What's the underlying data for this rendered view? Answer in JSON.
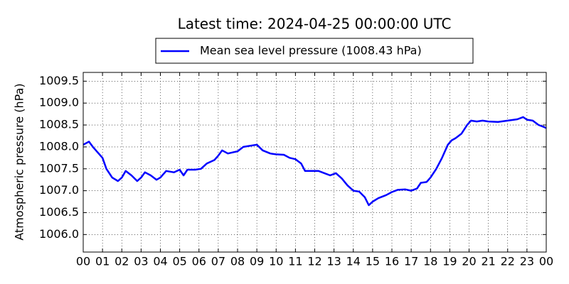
{
  "chart_data": {
    "type": "line",
    "title": "Latest time: 2024-04-25 00:00:00 UTC",
    "ylabel": "Atmospheric pressure (hPa)",
    "xlim": [
      0,
      24
    ],
    "ylim": [
      1005.6,
      1009.7
    ],
    "xticks": [
      {
        "value": 0,
        "label": "00"
      },
      {
        "value": 1,
        "label": "01"
      },
      {
        "value": 2,
        "label": "02"
      },
      {
        "value": 3,
        "label": "03"
      },
      {
        "value": 4,
        "label": "04"
      },
      {
        "value": 5,
        "label": "05"
      },
      {
        "value": 6,
        "label": "06"
      },
      {
        "value": 7,
        "label": "07"
      },
      {
        "value": 8,
        "label": "08"
      },
      {
        "value": 9,
        "label": "09"
      },
      10,
      11,
      12,
      13,
      14,
      15,
      16,
      17,
      18,
      19,
      20,
      21,
      22,
      23,
      {
        "value": 24,
        "label": "00"
      }
    ],
    "yticks": [
      {
        "value": 1006.0,
        "label": "1006.0"
      },
      1006.5,
      {
        "value": 1007.0,
        "label": "1007.0"
      },
      1007.5,
      {
        "value": 1008.0,
        "label": "1008.0"
      },
      1008.5,
      {
        "value": 1009.0,
        "label": "1009.0"
      },
      1009.5
    ],
    "grid": true,
    "legend": "upper center",
    "x": [
      0,
      0.3,
      0.5,
      0.8,
      1.0,
      1.2,
      1.5,
      1.8,
      2.0,
      2.2,
      2.5,
      2.8,
      3.0,
      3.2,
      3.5,
      3.8,
      4.0,
      4.3,
      4.7,
      5.0,
      5.2,
      5.4,
      5.8,
      6.1,
      6.4,
      6.8,
      7.0,
      7.2,
      7.5,
      7.8,
      8.0,
      8.3,
      8.7,
      9.0,
      9.3,
      9.7,
      10.0,
      10.4,
      10.7,
      11.0,
      11.3,
      11.5,
      11.8,
      12.2,
      12.5,
      12.8,
      13.1,
      13.4,
      13.7,
      14.0,
      14.3,
      14.6,
      14.8,
      15.0,
      15.3,
      15.7,
      16.0,
      16.3,
      16.7,
      17.0,
      17.3,
      17.5,
      17.8,
      18.0,
      18.3,
      18.6,
      18.9,
      19.1,
      19.3,
      19.6,
      19.9,
      20.1,
      20.4,
      20.7,
      21.0,
      21.5,
      22.0,
      22.5,
      22.8,
      23.0,
      23.3,
      23.6,
      23.9,
      24.0
    ],
    "series": [
      {
        "name": "Mean sea level pressure (1008.43 hPa)",
        "color": "#0000ff",
        "values": [
          1008.05,
          1008.12,
          1008.0,
          1007.85,
          1007.75,
          1007.5,
          1007.3,
          1007.22,
          1007.3,
          1007.45,
          1007.35,
          1007.22,
          1007.3,
          1007.42,
          1007.35,
          1007.25,
          1007.3,
          1007.45,
          1007.42,
          1007.48,
          1007.35,
          1007.48,
          1007.48,
          1007.5,
          1007.62,
          1007.7,
          1007.8,
          1007.92,
          1007.85,
          1007.88,
          1007.9,
          1008.0,
          1008.03,
          1008.05,
          1007.92,
          1007.85,
          1007.83,
          1007.82,
          1007.75,
          1007.72,
          1007.62,
          1007.45,
          1007.45,
          1007.45,
          1007.4,
          1007.35,
          1007.4,
          1007.28,
          1007.12,
          1007.0,
          1006.98,
          1006.85,
          1006.67,
          1006.75,
          1006.83,
          1006.9,
          1006.97,
          1007.02,
          1007.03,
          1007.0,
          1007.05,
          1007.18,
          1007.2,
          1007.3,
          1007.5,
          1007.75,
          1008.05,
          1008.15,
          1008.2,
          1008.3,
          1008.5,
          1008.6,
          1008.58,
          1008.6,
          1008.58,
          1008.57,
          1008.6,
          1008.63,
          1008.68,
          1008.62,
          1008.6,
          1008.5,
          1008.45,
          1008.43
        ]
      }
    ]
  }
}
